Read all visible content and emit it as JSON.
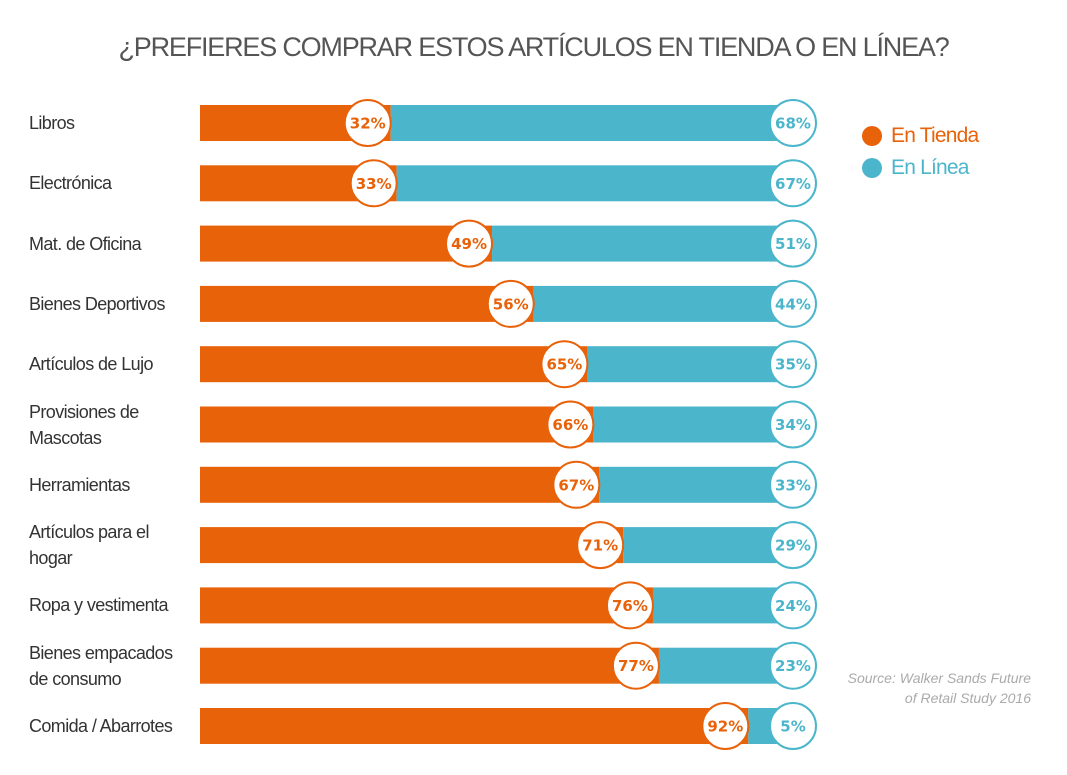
{
  "chart_data": {
    "type": "bar",
    "stacked": true,
    "orientation": "horizontal",
    "title": "¿PREFIERES COMPRAR ESTOS ARTÍCULOS EN TIENDA O EN LÍNEA?",
    "categories": [
      "Libros",
      "Electrónica",
      "Mat. de Oficina",
      "Bienes Deportivos",
      "Artículos de Lujo",
      "Provisiones de Mascotas",
      "Herramientas",
      "Artículos para el hogar",
      "Ropa y vestimenta",
      "Bienes empacados de consumo",
      "Comida / Abarrotes"
    ],
    "series": [
      {
        "name": "En Tienda",
        "color": "#E8620A",
        "values": [
          32,
          33,
          49,
          56,
          65,
          66,
          67,
          71,
          76,
          77,
          92
        ]
      },
      {
        "name": "En Línea",
        "color": "#4BB6CB",
        "values": [
          68,
          67,
          51,
          44,
          35,
          34,
          33,
          29,
          24,
          23,
          5
        ]
      }
    ],
    "value_suffix": "%",
    "xlim": [
      0,
      100
    ],
    "legend_position": "top-right",
    "source": {
      "line1": "Source: Walker Sands Future",
      "line2": "of Retail Study 2016"
    }
  }
}
